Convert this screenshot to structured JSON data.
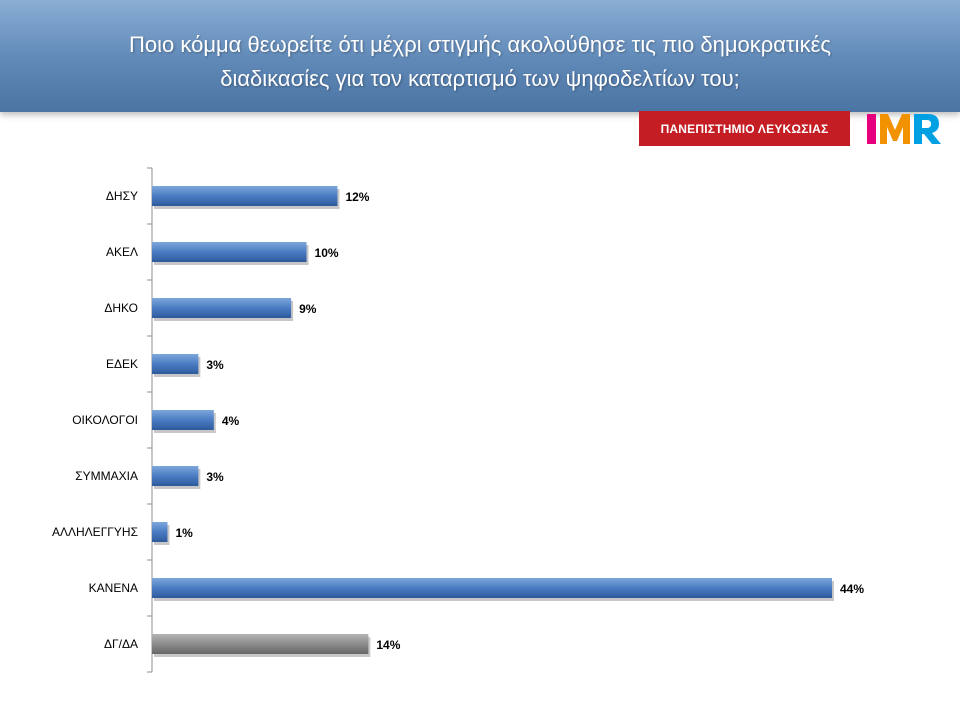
{
  "header": {
    "title_line1": "Ποιο κόμμα θεωρείτε ότι μέχρι στιγμής ακολούθησε τις πιο δημοκρατικές",
    "title_line2": "διαδικασίες για τον καταρτισμό των ψηφοδελτίων του;"
  },
  "logos": {
    "university": "ΠΑΝΕΠΙΣΤΗΜΙΟ ΛΕΥΚΩΣΙΑΣ",
    "imr": "IMR"
  },
  "colors": {
    "bar_main": "#4a7cc4",
    "bar_other": "#8c8c8c",
    "header": "#5f88b7",
    "university_red": "#c41e24"
  },
  "chart_data": {
    "type": "bar",
    "orientation": "horizontal",
    "title": "Ποιο κόμμα θεωρείτε ότι μέχρι στιγμής ακολούθησε τις πιο δημοκρατικές διαδικασίες για τον καταρτισμό των ψηφοδελτίων του;",
    "categories": [
      "ΔΗΣΥ",
      "ΑΚΕΛ",
      "ΔΗΚΟ",
      "ΕΔΕΚ",
      "ΟΙΚΟΛΟΓΟΙ",
      "ΣΥΜΜΑΧΙΑ",
      "ΑΛΛΗΛΕΓΓΥΗΣ",
      "ΚΑΝΕΝΑ",
      "ΔΓ/ΔΑ"
    ],
    "values": [
      12,
      10,
      9,
      3,
      4,
      3,
      1,
      44,
      14
    ],
    "value_labels": [
      "12%",
      "10%",
      "9%",
      "3%",
      "4%",
      "3%",
      "1%",
      "44%",
      "14%"
    ],
    "highlight_category": "ΔΓ/ΔΑ",
    "unit": "%",
    "xlabel": "",
    "ylabel": "",
    "xlim": [
      0,
      44
    ],
    "grid": false,
    "legend": false
  }
}
